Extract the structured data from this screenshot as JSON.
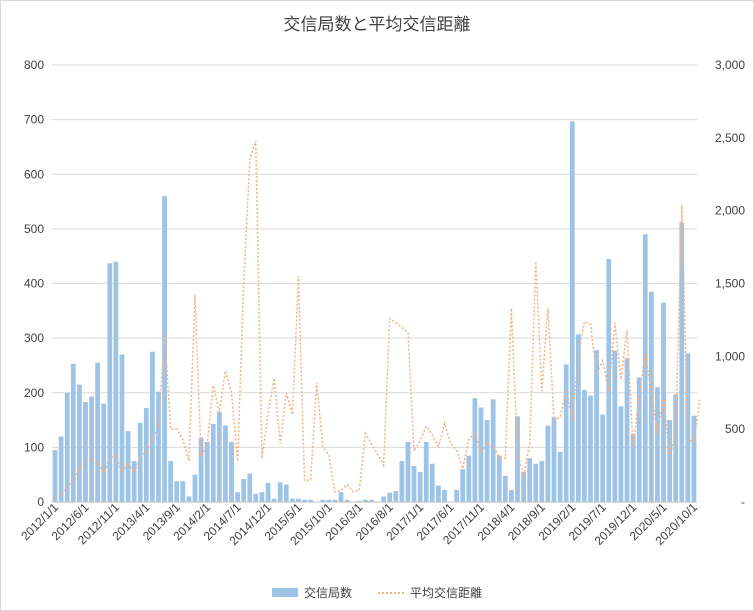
{
  "chart_data": {
    "type": "bar",
    "title": "交信局数と平均交信距離",
    "colors": {
      "bar": "#9dc3e6",
      "line": "#f4b183",
      "grid": "#d9d9d9",
      "text": "#404040"
    },
    "legend_position": "bottom",
    "grid": true,
    "y_left": {
      "ylim": [
        0,
        800
      ],
      "ticks": [
        "0",
        "100",
        "200",
        "300",
        "400",
        "500",
        "600",
        "700",
        "800"
      ]
    },
    "y_right": {
      "ylim": [
        0,
        3000
      ],
      "ticks": [
        "-",
        "500",
        "1,000",
        "1,500",
        "2,000",
        "2,500",
        "3,000"
      ]
    },
    "x_tick_labels": [
      "2012/1/1",
      "2012/6/1",
      "2012/11/1",
      "2013/4/1",
      "2013/9/1",
      "2014/2/1",
      "2014/7/1",
      "2014/12/1",
      "2015/5/1",
      "2015/10/1",
      "2016/3/1",
      "2016/8/1",
      "2017/1/1",
      "2017/6/1",
      "2017/11/1",
      "2018/4/1",
      "2018/9/1",
      "2019/2/1",
      "2019/7/1",
      "2019/12/1",
      "2020/5/1",
      "2020/10/1"
    ],
    "series": [
      {
        "name": "交信局数",
        "type": "bar",
        "axis": "left",
        "values": [
          95,
          120,
          200,
          253,
          215,
          183,
          193,
          255,
          180,
          437,
          440,
          270,
          130,
          75,
          145,
          172,
          275,
          202,
          560,
          75,
          38,
          38,
          10,
          50,
          118,
          110,
          143,
          165,
          140,
          110,
          18,
          42,
          52,
          15,
          18,
          35,
          6,
          36,
          32,
          6,
          6,
          4,
          4,
          0,
          4,
          4,
          4,
          18,
          4,
          0,
          2,
          4,
          4,
          0,
          10,
          17,
          20,
          75,
          110,
          66,
          55,
          110,
          70,
          30,
          22,
          0,
          22,
          60,
          85,
          190,
          173,
          150,
          188,
          85,
          48,
          22,
          157,
          55,
          80,
          70,
          75,
          140,
          155,
          92,
          252,
          697,
          307,
          205,
          195,
          278,
          160,
          445,
          277,
          175,
          263,
          125,
          228,
          490,
          385,
          210,
          365,
          150,
          197,
          512,
          272,
          158
        ]
      },
      {
        "name": "平均交信距離",
        "type": "line",
        "axis": "right",
        "values": [
          30,
          50,
          100,
          150,
          230,
          280,
          300,
          270,
          200,
          300,
          320,
          200,
          270,
          200,
          300,
          350,
          420,
          520,
          1150,
          500,
          500,
          430,
          280,
          1420,
          300,
          400,
          800,
          620,
          900,
          750,
          280,
          1500,
          2350,
          2480,
          300,
          600,
          850,
          400,
          750,
          600,
          1550,
          150,
          150,
          820,
          380,
          320,
          70,
          80,
          120,
          70,
          80,
          470,
          400,
          330,
          250,
          1260,
          1230,
          1200,
          1160,
          350,
          420,
          520,
          460,
          380,
          540,
          400,
          360,
          230,
          430,
          480,
          340,
          410,
          380,
          310,
          300,
          1330,
          330,
          180,
          400,
          1650,
          760,
          1330,
          560,
          580,
          770,
          560,
          1000,
          1240,
          1220,
          880,
          970,
          760,
          1230,
          840,
          1180,
          380,
          730,
          1020,
          750,
          470,
          720,
          310,
          470,
          2040,
          420,
          420,
          700
        ]
      }
    ]
  }
}
